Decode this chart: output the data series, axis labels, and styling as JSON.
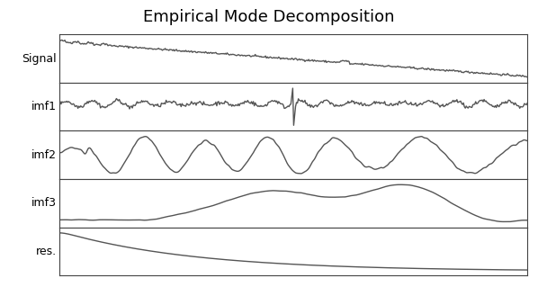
{
  "title": "Empirical Mode Decomposition",
  "title_fontsize": 13,
  "labels": [
    "Signal",
    "imf1",
    "imf2",
    "imf3",
    "res."
  ],
  "label_fontsize": 9,
  "line_color": "#555555",
  "line_width": 1.0,
  "background_color": "#ffffff",
  "n_points": 500,
  "fig_width": 5.98,
  "fig_height": 3.19
}
